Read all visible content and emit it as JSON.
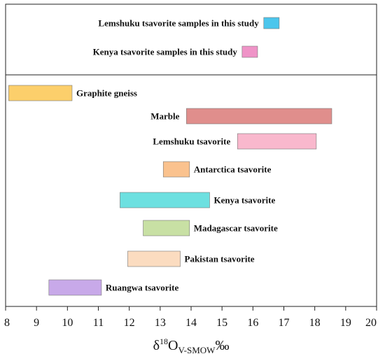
{
  "chart_data": {
    "type": "bar",
    "orientation": "horizontal-range",
    "xlim": [
      8,
      20
    ],
    "xticks": [
      8,
      9,
      10,
      11,
      12,
      13,
      14,
      15,
      16,
      17,
      18,
      19,
      20
    ],
    "xlabel": {
      "main": "δ",
      "sup": "18",
      "mid": "O",
      "sub": "V-SMOW",
      "unit": "‰"
    },
    "legend_position": "top-center",
    "legend": [
      {
        "label": "Lemshuku tsavorite samples in this study",
        "from": 16.35,
        "to": 16.85,
        "color": "#4cc6ec"
      },
      {
        "label": "Kenya tsavorite samples in this study",
        "from": 15.65,
        "to": 16.15,
        "color": "#ef93c7"
      }
    ],
    "series": [
      {
        "name": "Graphite gneiss",
        "from": 8.1,
        "to": 10.15,
        "color": "#fccf6b",
        "label_side": "right"
      },
      {
        "name": "Marble",
        "from": 13.85,
        "to": 18.55,
        "color": "#e08e8c",
        "label_side": "left"
      },
      {
        "name": "Lemshuku tsavorite",
        "from": 15.5,
        "to": 18.05,
        "color": "#f9b8cd",
        "label_side": "left"
      },
      {
        "name": "Antarctica tsavorite",
        "from": 13.1,
        "to": 13.95,
        "color": "#fac28e",
        "label_side": "right"
      },
      {
        "name": "Kenya tsavorite",
        "from": 11.7,
        "to": 14.6,
        "color": "#6de0e0",
        "label_side": "right"
      },
      {
        "name": "Madagascar tsavorite",
        "from": 12.45,
        "to": 13.95,
        "color": "#c8e0a4",
        "label_side": "right"
      },
      {
        "name": "Pakistan tsavorite",
        "from": 11.95,
        "to": 13.65,
        "color": "#fbdcc0",
        "label_side": "right"
      },
      {
        "name": "Ruangwa tsavorite",
        "from": 9.4,
        "to": 11.1,
        "color": "#c8a9e9",
        "label_side": "right"
      }
    ]
  }
}
